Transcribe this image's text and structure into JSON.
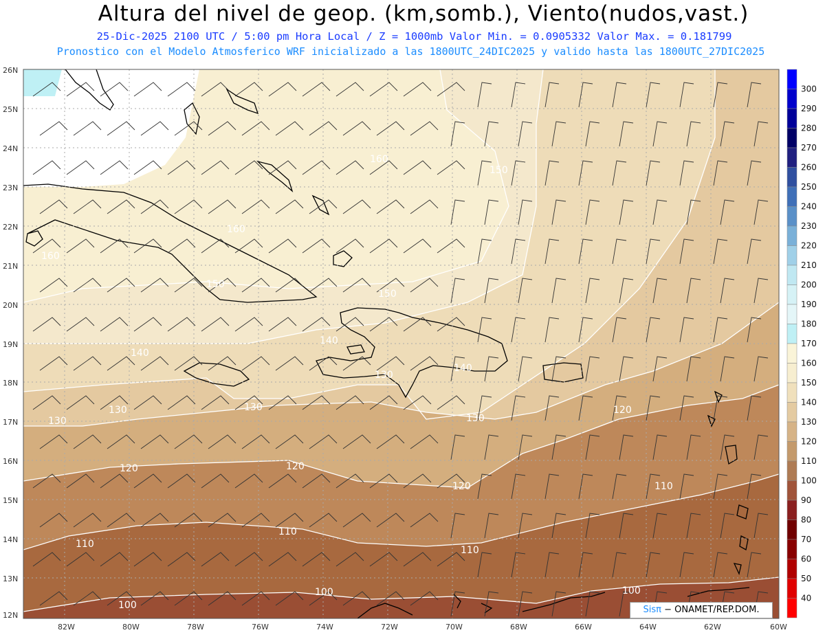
{
  "header": {
    "title": "Altura del nivel de geop. (km,somb.), Viento(nudos,vast.)",
    "subtitle_line1": "25-Dic-2025  2100 UTC / 5:00 pm Hora Local / Z = 1000mb  Valor Min. = 0.0905332  Valor Max. = 0.181799",
    "subtitle_line2": "Pronostico con el Modelo Atmosferico WRF inicializado a las 1800UTC_24DIC2025 y valido hasta las  1800UTC_27DIC2025"
  },
  "map": {
    "region": "Caribbean",
    "lat_ticks": [
      "26N",
      "25N",
      "24N",
      "23N",
      "22N",
      "21N",
      "20N",
      "19N",
      "18N",
      "17N",
      "16N",
      "15N",
      "14N",
      "13N",
      "12N"
    ],
    "lon_ticks": [
      "82W",
      "80W",
      "78W",
      "76W",
      "74W",
      "72W",
      "70W",
      "68W",
      "66W",
      "64W",
      "62W",
      "60W"
    ],
    "contour_labels": [
      "160",
      "150",
      "160",
      "160",
      "150",
      "150",
      "140",
      "140",
      "140",
      "130",
      "130",
      "130",
      "130",
      "130",
      "120",
      "120",
      "120",
      "120",
      "110",
      "110",
      "110",
      "110",
      "100",
      "100",
      "100"
    ],
    "colors": {
      "level_100": "#a0583a",
      "level_110": "#be885a",
      "level_120": "#d4ae7e",
      "level_130": "#e4c9a0",
      "level_140": "#eedcb8",
      "level_150": "#f4e8cc",
      "level_160": "#f8efd2",
      "level_180": "#bfeef5",
      "land_outline": "#000000",
      "contour_line": "#ffffff",
      "grid": "#999999"
    }
  },
  "colorbar": {
    "labels": [
      "300",
      "290",
      "280",
      "270",
      "260",
      "250",
      "240",
      "230",
      "220",
      "210",
      "200",
      "190",
      "180",
      "170",
      "160",
      "150",
      "140",
      "130",
      "120",
      "110",
      "100",
      "90",
      "80",
      "70",
      "60",
      "50",
      "40"
    ],
    "colors": [
      "#0000ff",
      "#0000cc",
      "#000099",
      "#000066",
      "#202080",
      "#3050a0",
      "#4070b8",
      "#5a90c8",
      "#7ab0d8",
      "#a0d0e8",
      "#c0e8f2",
      "#d6f2f6",
      "#e4f6f8",
      "#bff0f5",
      "#faf4d8",
      "#f7eed0",
      "#f0e0bc",
      "#e4cba2",
      "#d6b387",
      "#c49a6c",
      "#ae7b54",
      "#a0543a",
      "#8a2020",
      "#700000",
      "#880000",
      "#b00000",
      "#e00000",
      "#ff0000"
    ]
  },
  "credit": {
    "sis": "Sisπ",
    "rest": "− ONAMET/REP.DOM."
  }
}
